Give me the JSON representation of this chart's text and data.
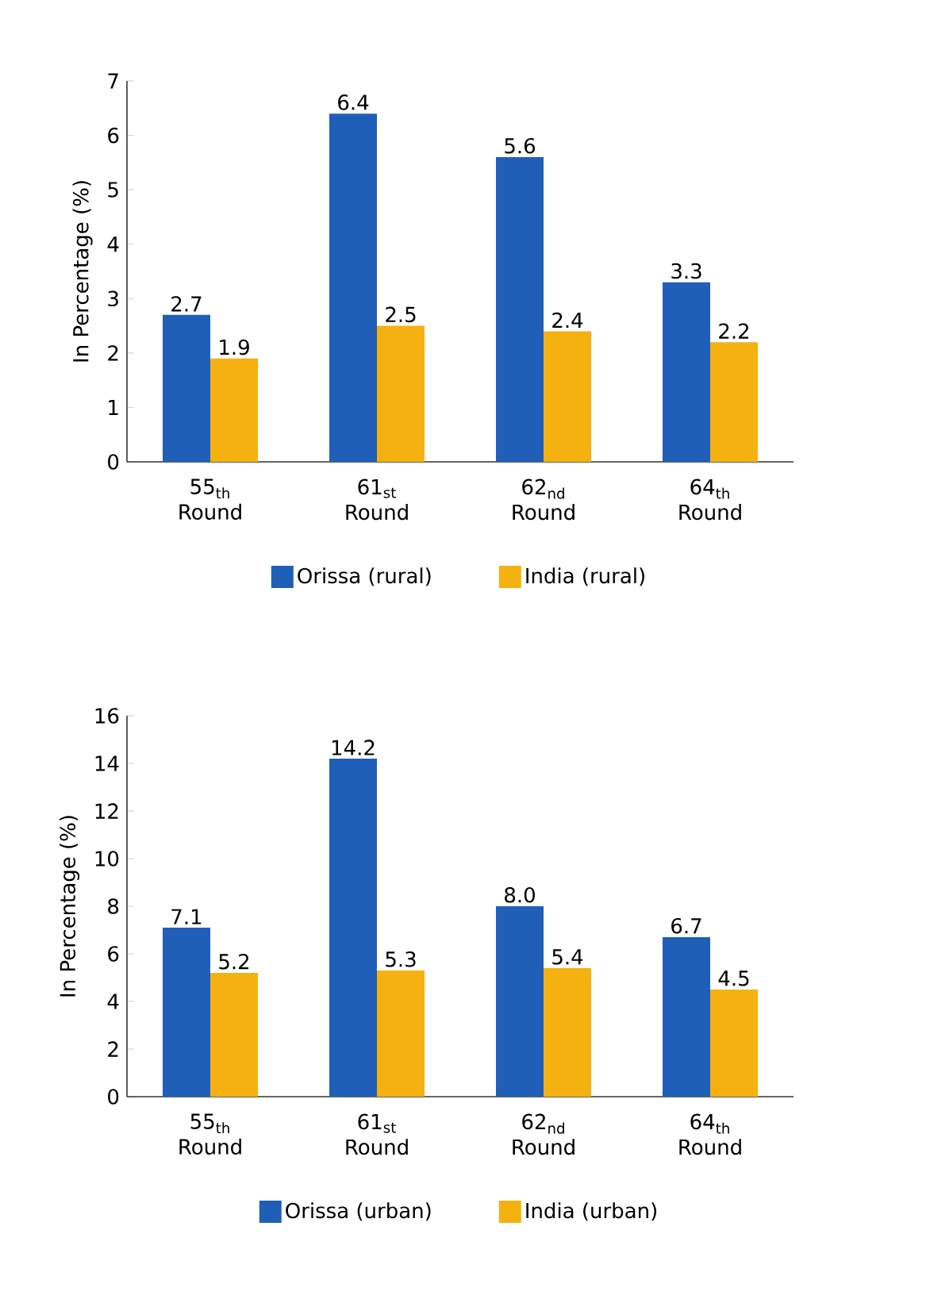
{
  "chart_data": [
    {
      "type": "bar",
      "ylabel": "In Percentage (%)",
      "categories": [
        "55$_{th}$ Round",
        "61$_{st}$ Round",
        "62$_{nd}$ Round",
        "64$_{th}$ Round"
      ],
      "series": [
        {
          "name": "Orissa (rural)",
          "color": "#1f5fb8",
          "values": [
            2.7,
            6.4,
            5.6,
            3.3
          ],
          "value_labels": [
            "2.7",
            "6.4",
            "5.6",
            "3.3"
          ]
        },
        {
          "name": "India (rural)",
          "color": "#f5b10f",
          "values": [
            1.9,
            2.5,
            2.4,
            2.2
          ],
          "value_labels": [
            "1.9",
            "2.5",
            "2.4",
            "2.2"
          ]
        }
      ],
      "ylim": [
        0,
        7
      ],
      "yticks": [
        0,
        1,
        2,
        3,
        4,
        5,
        6,
        7
      ],
      "legend": "bottom",
      "grid": false
    },
    {
      "type": "bar",
      "ylabel": "In Percentage (%)",
      "categories": [
        "55$_{th}$ Round",
        "61$_{st}$ Round",
        "62$_{nd}$ Round",
        "64$_{th}$ Round"
      ],
      "series": [
        {
          "name": "Orissa (urban)",
          "color": "#1f5fb8",
          "values": [
            7.1,
            14.2,
            8.0,
            6.7
          ],
          "value_labels": [
            "7.1",
            "14.2",
            "8.0",
            "6.7"
          ]
        },
        {
          "name": "India (urban)",
          "color": "#f5b10f",
          "values": [
            5.2,
            5.3,
            5.4,
            4.5
          ],
          "value_labels": [
            "5.2",
            "5.3",
            "5.4",
            "4.5"
          ]
        }
      ],
      "ylim": [
        0,
        16
      ],
      "yticks": [
        0,
        2,
        4,
        6,
        8,
        10,
        12,
        14,
        16
      ],
      "legend": "bottom",
      "grid": false
    }
  ]
}
